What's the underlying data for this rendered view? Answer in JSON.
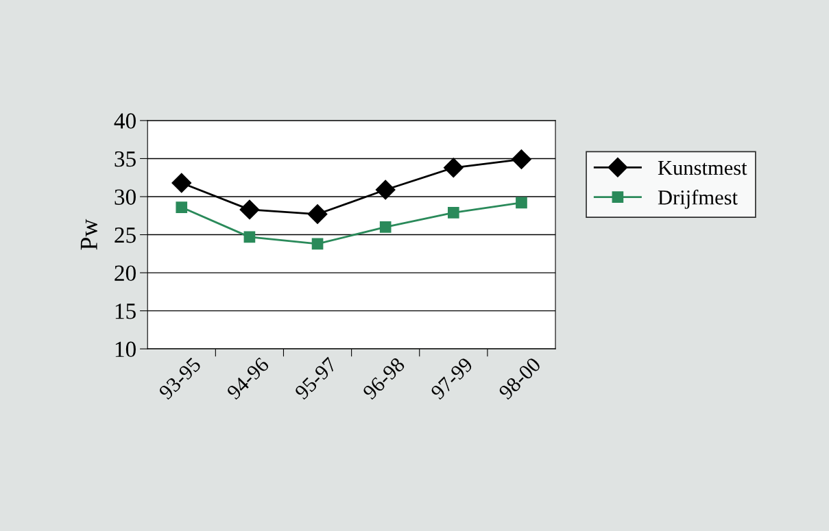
{
  "chart_data": {
    "type": "line",
    "ylabel": "Pw",
    "categories": [
      "93-95",
      "94-96",
      "95-97",
      "96-98",
      "97-99",
      "98-00"
    ],
    "series": [
      {
        "name": "Kunstmest",
        "color": "#000000",
        "marker": "diamond",
        "values": [
          31.8,
          28.3,
          27.7,
          30.9,
          33.8,
          34.9
        ]
      },
      {
        "name": "Drijfmest",
        "color": "#2a8a5a",
        "marker": "square",
        "values": [
          28.6,
          24.7,
          23.8,
          26.0,
          27.9,
          29.2
        ]
      }
    ],
    "ylim": [
      10,
      40
    ],
    "yticks": [
      10,
      15,
      20,
      25,
      30,
      35,
      40
    ],
    "grid": "y",
    "legend": "right",
    "line_style": "solid"
  }
}
